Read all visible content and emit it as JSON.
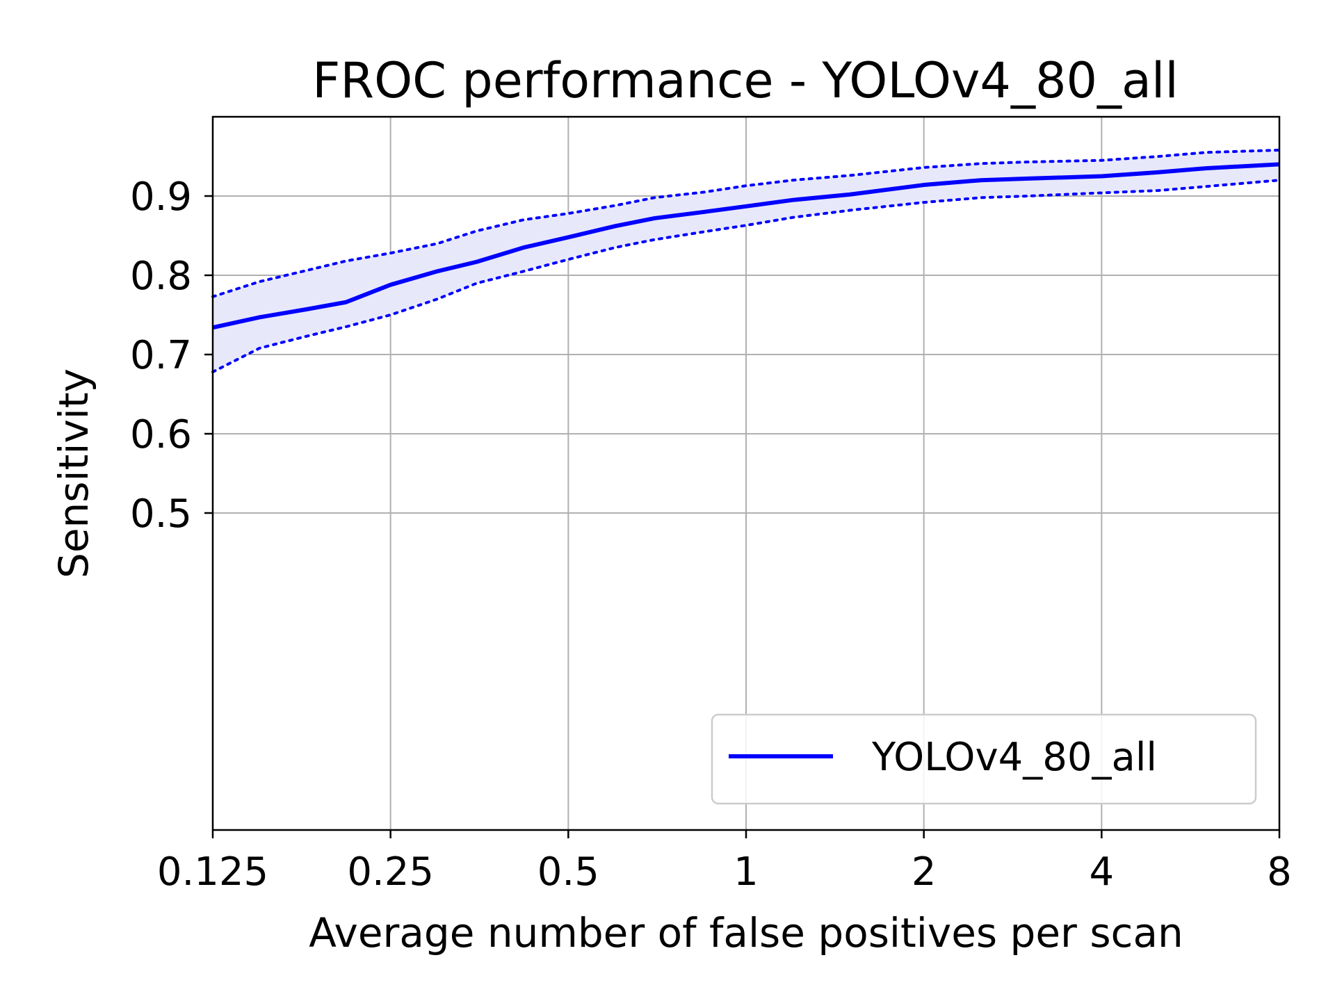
{
  "chart_data": {
    "type": "line",
    "title": "FROC performance - YOLOv4_80_all",
    "xlabel": "Average number of false positives per scan",
    "ylabel": "Sensitivity",
    "x_scale": "log2",
    "xlim": [
      0.125,
      8
    ],
    "ylim": [
      0.1,
      1.0
    ],
    "x_ticks": [
      0.125,
      0.25,
      0.5,
      1,
      2,
      4,
      8
    ],
    "x_tick_labels": [
      "0.125",
      "0.25",
      "0.5",
      "1",
      "2",
      "4",
      "8"
    ],
    "y_ticks": [
      0.5,
      0.6,
      0.7,
      0.8,
      0.9
    ],
    "y_tick_labels": [
      "0.5",
      "0.6",
      "0.7",
      "0.8",
      "0.9"
    ],
    "grid": true,
    "legend_position": "lower-right",
    "colors": {
      "line": "#0000ff",
      "band": "#e8e8fb",
      "grid": "#b0b0b0"
    },
    "series": [
      {
        "name": "YOLOv4_80_all",
        "x": [
          0.125,
          0.15,
          0.18,
          0.21,
          0.25,
          0.3,
          0.35,
          0.42,
          0.5,
          0.6,
          0.7,
          0.85,
          1,
          1.2,
          1.5,
          2,
          2.5,
          3,
          4,
          5,
          6,
          8
        ],
        "y": [
          0.734,
          0.747,
          0.757,
          0.766,
          0.788,
          0.805,
          0.817,
          0.835,
          0.848,
          0.862,
          0.872,
          0.88,
          0.887,
          0.895,
          0.902,
          0.914,
          0.92,
          0.922,
          0.925,
          0.93,
          0.935,
          0.94
        ],
        "lower": [
          0.678,
          0.708,
          0.723,
          0.735,
          0.75,
          0.77,
          0.79,
          0.805,
          0.82,
          0.835,
          0.845,
          0.855,
          0.863,
          0.873,
          0.882,
          0.892,
          0.898,
          0.9,
          0.904,
          0.907,
          0.912,
          0.92
        ],
        "upper": [
          0.773,
          0.792,
          0.806,
          0.818,
          0.828,
          0.84,
          0.856,
          0.87,
          0.878,
          0.888,
          0.898,
          0.905,
          0.913,
          0.92,
          0.926,
          0.936,
          0.941,
          0.943,
          0.945,
          0.95,
          0.955,
          0.958
        ]
      }
    ]
  }
}
